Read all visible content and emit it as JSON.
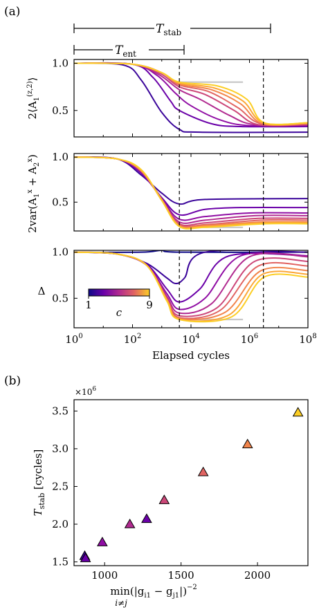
{
  "panel_labels": {
    "a": "(a)",
    "b": "(b)"
  },
  "annotations": {
    "t_stab": "Tstab",
    "t_ent": "Tent"
  },
  "colorbar": {
    "min_label": "1",
    "max_label": "9",
    "label": "c"
  },
  "colors": [
    "#0d0887",
    "#3a049a",
    "#6a00a8",
    "#900da4",
    "#b12a90",
    "#cc4778",
    "#e16462",
    "#f2844b",
    "#fca636",
    "#fcce25"
  ],
  "chart_data": [
    {
      "type": "line",
      "panel": "a-top",
      "ylabel": "2⟨A1^(z,2)⟩",
      "xscale": "log",
      "xlim": [
        1,
        100000000
      ],
      "ylim": [
        0.22,
        1.04
      ],
      "yticks": [
        0.5,
        1.0
      ],
      "ytick_labels": [
        "0.5",
        "1.0"
      ],
      "vlines_x": [
        4000,
        3000000
      ],
      "grey_segment": {
        "x": [
          4000,
          600000
        ],
        "y": [
          0.8,
          0.8
        ]
      },
      "series": [
        {
          "c": 1,
          "x": [
            1,
            50,
            200,
            1000,
            4000,
            20000,
            100000000
          ],
          "y": [
            1.0,
            0.98,
            0.82,
            0.48,
            0.3,
            0.27,
            0.27
          ]
        },
        {
          "c": 2,
          "x": [
            1,
            100,
            500,
            2000,
            4000,
            50000,
            500000,
            100000000
          ],
          "y": [
            1.0,
            0.99,
            0.85,
            0.6,
            0.5,
            0.36,
            0.33,
            0.33
          ]
        },
        {
          "c": 3,
          "x": [
            1,
            100,
            700,
            3000,
            10000,
            100000,
            1000000,
            100000000
          ],
          "y": [
            1.0,
            0.99,
            0.87,
            0.68,
            0.55,
            0.4,
            0.34,
            0.34
          ]
        },
        {
          "c": 4,
          "x": [
            1,
            100,
            800,
            4000,
            20000,
            200000,
            1500000,
            100000000
          ],
          "y": [
            1.0,
            0.99,
            0.88,
            0.72,
            0.62,
            0.45,
            0.35,
            0.35
          ]
        },
        {
          "c": 5,
          "x": [
            1,
            100,
            900,
            4000,
            30000,
            300000,
            2000000,
            100000000
          ],
          "y": [
            1.0,
            0.99,
            0.89,
            0.75,
            0.67,
            0.5,
            0.35,
            0.35
          ]
        },
        {
          "c": 6,
          "x": [
            1,
            100,
            1000,
            4000,
            40000,
            400000,
            2500000,
            100000000
          ],
          "y": [
            1.0,
            0.99,
            0.9,
            0.77,
            0.7,
            0.53,
            0.36,
            0.36
          ]
        },
        {
          "c": 7,
          "x": [
            1,
            100,
            1000,
            4000,
            50000,
            500000,
            2800000,
            100000000
          ],
          "y": [
            1.0,
            0.99,
            0.9,
            0.78,
            0.72,
            0.57,
            0.36,
            0.36
          ]
        },
        {
          "c": 8,
          "x": [
            1,
            100,
            1000,
            4000,
            60000,
            600000,
            3000000,
            100000000
          ],
          "y": [
            1.0,
            0.99,
            0.9,
            0.79,
            0.74,
            0.6,
            0.37,
            0.37
          ]
        },
        {
          "c": 9,
          "x": [
            1,
            100,
            1000,
            4000,
            80000,
            800000,
            3200000,
            100000000
          ],
          "y": [
            1.0,
            0.99,
            0.9,
            0.8,
            0.76,
            0.62,
            0.37,
            0.37
          ]
        }
      ]
    },
    {
      "type": "line",
      "panel": "a-middle",
      "ylabel": "2var(A1^x + A2^x)",
      "xscale": "log",
      "xlim": [
        1,
        100000000
      ],
      "ylim": [
        0.18,
        1.04
      ],
      "yticks": [
        0.5,
        1.0
      ],
      "ytick_labels": [
        "0.5",
        "1.0"
      ],
      "vlines_x": [
        4000,
        3000000
      ],
      "grey_segment": {
        "x": [
          4000,
          600000
        ],
        "y": [
          0.22,
          0.22
        ]
      },
      "series": [
        {
          "c": 1,
          "x": [
            1,
            30,
            200,
            1000,
            4000,
            30000,
            100000000
          ],
          "y": [
            1.0,
            0.98,
            0.8,
            0.6,
            0.48,
            0.53,
            0.54
          ]
        },
        {
          "c": 2,
          "x": [
            1,
            30,
            200,
            1000,
            4000,
            30000,
            500000,
            100000000
          ],
          "y": [
            1.0,
            0.98,
            0.82,
            0.55,
            0.36,
            0.42,
            0.44,
            0.44
          ]
        },
        {
          "c": 3,
          "x": [
            1,
            30,
            200,
            1000,
            4000,
            30000,
            1000000,
            100000000
          ],
          "y": [
            1.0,
            0.98,
            0.83,
            0.54,
            0.31,
            0.34,
            0.38,
            0.38
          ]
        },
        {
          "c": 4,
          "x": [
            1,
            30,
            200,
            1000,
            4000,
            30000,
            1500000,
            100000000
          ],
          "y": [
            1.0,
            0.98,
            0.84,
            0.53,
            0.28,
            0.3,
            0.35,
            0.35
          ]
        },
        {
          "c": 5,
          "x": [
            1,
            30,
            200,
            1000,
            4000,
            30000,
            2000000,
            100000000
          ],
          "y": [
            1.0,
            0.98,
            0.84,
            0.53,
            0.26,
            0.27,
            0.32,
            0.32
          ]
        },
        {
          "c": 6,
          "x": [
            1,
            30,
            200,
            1000,
            4000,
            30000,
            2500000,
            100000000
          ],
          "y": [
            1.0,
            0.98,
            0.85,
            0.53,
            0.25,
            0.25,
            0.3,
            0.3
          ]
        },
        {
          "c": 7,
          "x": [
            1,
            30,
            200,
            1000,
            4000,
            30000,
            2800000,
            100000000
          ],
          "y": [
            1.0,
            0.98,
            0.85,
            0.52,
            0.24,
            0.24,
            0.28,
            0.28
          ]
        },
        {
          "c": 8,
          "x": [
            1,
            30,
            200,
            1000,
            4000,
            30000,
            3000000,
            100000000
          ],
          "y": [
            1.0,
            0.98,
            0.85,
            0.52,
            0.23,
            0.23,
            0.27,
            0.27
          ]
        },
        {
          "c": 9,
          "x": [
            1,
            30,
            200,
            1000,
            4000,
            30000,
            3200000,
            100000000
          ],
          "y": [
            1.0,
            0.98,
            0.86,
            0.52,
            0.23,
            0.22,
            0.26,
            0.26
          ]
        }
      ]
    },
    {
      "type": "line",
      "panel": "a-bottom",
      "ylabel": "Δ",
      "xscale": "log",
      "xlim": [
        1,
        100000000
      ],
      "ylim": [
        0.18,
        1.02
      ],
      "yticks": [
        0.5,
        1.0
      ],
      "ytick_labels": [
        "0.5",
        "1.0"
      ],
      "xticks": [
        1,
        100,
        10000,
        1000000,
        100000000
      ],
      "xtick_labels": [
        "10^0",
        "10^2",
        "10^4",
        "10^6",
        "10^8"
      ],
      "xlabel": "Elapsed cycles",
      "vlines_x": [
        4000,
        3000000
      ],
      "grey_segment": {
        "x": [
          4000,
          600000
        ],
        "y": [
          0.27,
          0.27
        ]
      },
      "series": [
        {
          "c": 0,
          "x": [
            1,
            200,
            1000,
            4000,
            100000000
          ],
          "y": [
            1.0,
            1.0,
            1.02,
            1.0,
            1.0
          ]
        },
        {
          "c": 1,
          "x": [
            1,
            30,
            300,
            1500,
            3000,
            6000,
            30000,
            100000000
          ],
          "y": [
            1.0,
            0.98,
            0.88,
            0.72,
            0.66,
            0.72,
            1.0,
            1.0
          ]
        },
        {
          "c": 2,
          "x": [
            1,
            30,
            300,
            1500,
            4000,
            20000,
            200000,
            100000000
          ],
          "y": [
            1.0,
            0.98,
            0.87,
            0.6,
            0.46,
            0.6,
            0.96,
            0.96
          ]
        },
        {
          "c": 3,
          "x": [
            1,
            30,
            300,
            1500,
            4000,
            30000,
            500000,
            100000000
          ],
          "y": [
            1.0,
            0.98,
            0.86,
            0.55,
            0.38,
            0.5,
            0.96,
            0.96
          ]
        },
        {
          "c": 4,
          "x": [
            1,
            30,
            300,
            1500,
            4000,
            50000,
            1000000,
            100000000
          ],
          "y": [
            1.0,
            0.98,
            0.86,
            0.52,
            0.34,
            0.44,
            0.95,
            0.95
          ]
        },
        {
          "c": 5,
          "x": [
            1,
            30,
            300,
            1500,
            4000,
            80000,
            1500000,
            100000000
          ],
          "y": [
            1.0,
            0.98,
            0.86,
            0.5,
            0.31,
            0.4,
            0.9,
            0.9
          ]
        },
        {
          "c": 6,
          "x": [
            1,
            30,
            300,
            1500,
            4000,
            100000,
            2000000,
            100000000
          ],
          "y": [
            1.0,
            0.98,
            0.86,
            0.49,
            0.29,
            0.37,
            0.85,
            0.85
          ]
        },
        {
          "c": 7,
          "x": [
            1,
            30,
            300,
            1500,
            4000,
            150000,
            2500000,
            100000000
          ],
          "y": [
            1.0,
            0.98,
            0.86,
            0.48,
            0.28,
            0.35,
            0.8,
            0.8
          ]
        },
        {
          "c": 8,
          "x": [
            1,
            30,
            300,
            1500,
            4000,
            200000,
            2800000,
            100000000
          ],
          "y": [
            1.0,
            0.98,
            0.86,
            0.48,
            0.27,
            0.32,
            0.76,
            0.76
          ]
        },
        {
          "c": 9,
          "x": [
            1,
            30,
            300,
            1500,
            4000,
            250000,
            3200000,
            100000000
          ],
          "y": [
            1.0,
            0.98,
            0.86,
            0.47,
            0.27,
            0.3,
            0.73,
            0.73
          ]
        }
      ]
    },
    {
      "type": "scatter",
      "panel": "b",
      "marker": "triangle",
      "xlabel": "min i≠j (|gi1 − gj1|)^−2",
      "ylabel": "Tstab [cycles]",
      "y_multiplier": "×10^6",
      "xlim": [
        800,
        2330
      ],
      "ylim": [
        1.45,
        3.65
      ],
      "xticks": [
        1000,
        1500,
        2000
      ],
      "xtick_labels": [
        "1000",
        "1500",
        "2000"
      ],
      "yticks": [
        1.5,
        2.0,
        2.5,
        3.0,
        3.5
      ],
      "ytick_labels": [
        "1.5",
        "2.0",
        "2.5",
        "3.0",
        "3.5"
      ],
      "points": [
        {
          "x": 870,
          "y": 1.58,
          "c": 1
        },
        {
          "x": 875,
          "y": 1.55,
          "c": 2
        },
        {
          "x": 985,
          "y": 1.76,
          "c": 3
        },
        {
          "x": 1165,
          "y": 2.0,
          "c": 4
        },
        {
          "x": 1275,
          "y": 2.07,
          "c": 2
        },
        {
          "x": 1390,
          "y": 2.32,
          "c": 5
        },
        {
          "x": 1645,
          "y": 2.69,
          "c": 6
        },
        {
          "x": 1935,
          "y": 3.06,
          "c": 7
        },
        {
          "x": 2265,
          "y": 3.48,
          "c": 9
        }
      ]
    }
  ]
}
